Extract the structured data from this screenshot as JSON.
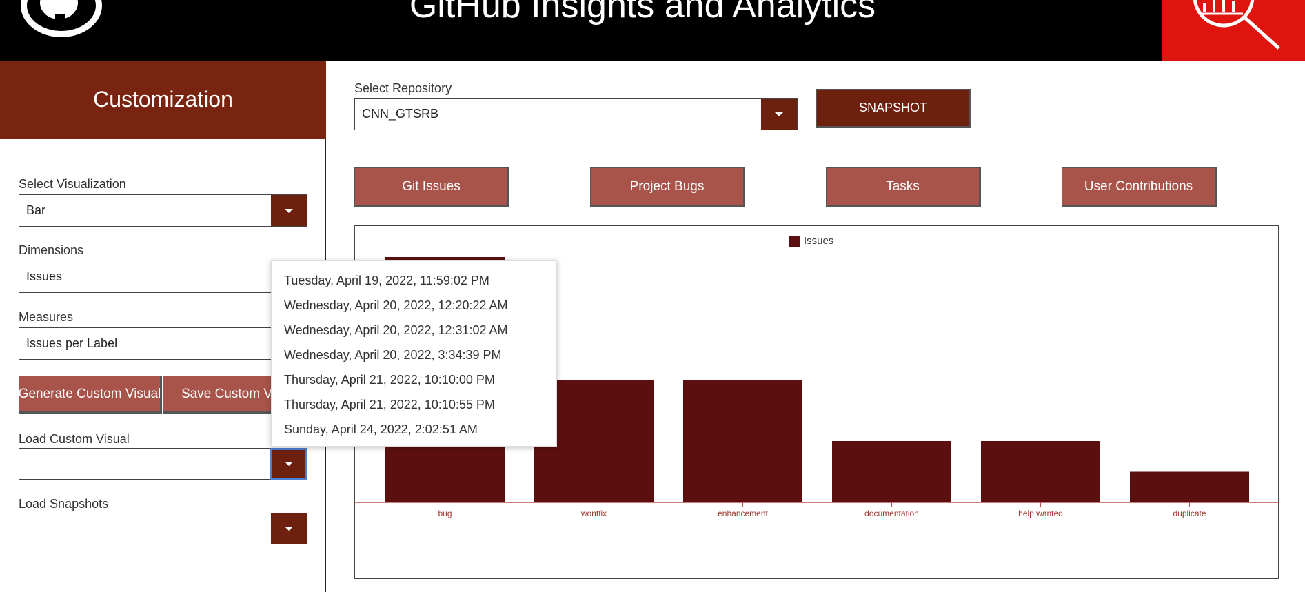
{
  "header": {
    "title": "GitHub Insights and Analytics",
    "logo_icon": "github-logo-icon",
    "brand_icon": "magnifier-chart-icon"
  },
  "sidebar": {
    "title": "Customization",
    "visualization": {
      "label": "Select Visualization",
      "value": "Bar"
    },
    "dimensions": {
      "label": "Dimensions",
      "value": "Issues"
    },
    "measures": {
      "label": "Measures",
      "value": "Issues per Label"
    },
    "generate_button": "Generate Custom Visual",
    "save_button": "Save Custom Visual",
    "load_visual": {
      "label": "Load Custom Visual",
      "value": ""
    },
    "load_snapshots": {
      "label": "Load Snapshots",
      "value": ""
    }
  },
  "main": {
    "repo": {
      "label": "Select Repository",
      "value": "CNN_GTSRB"
    },
    "snapshot_button": "SNAPSHOT",
    "tabs": [
      "Git Issues",
      "Project Bugs",
      "Tasks",
      "User Contributions"
    ]
  },
  "popup": {
    "items": [
      "Tuesday, April 19, 2022, 11:59:02 PM",
      "Wednesday, April 20, 2022, 12:20:22 AM",
      "Wednesday, April 20, 2022, 12:31:02 AM",
      "Wednesday, April 20, 2022, 3:34:39 PM",
      "Thursday, April 21, 2022, 10:10:00 PM",
      "Thursday, April 21, 2022, 10:10:55 PM",
      "Sunday, April 24, 2022, 2:02:51 AM"
    ]
  },
  "colors": {
    "accent": "#782410",
    "button": "#a8544a",
    "bar": "#5c0f0f",
    "brand_red": "#e0140f"
  },
  "chart_data": {
    "type": "bar",
    "categories": [
      "bug",
      "wontfix",
      "enhancement",
      "documentation",
      "help wanted",
      "duplicate"
    ],
    "series": [
      {
        "name": "Issues",
        "values": [
          8,
          4,
          4,
          2,
          2,
          1
        ]
      }
    ],
    "ylim": [
      0,
      8
    ],
    "legend": "top-center"
  }
}
